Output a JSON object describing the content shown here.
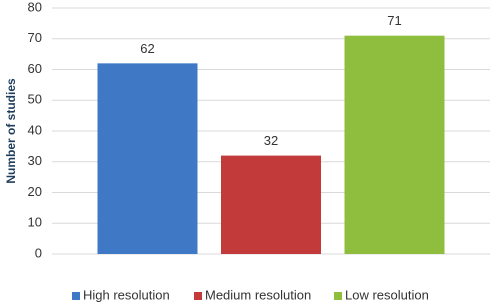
{
  "chart_data": {
    "type": "bar",
    "y_label": "Number of studies",
    "categories": [
      null
    ],
    "series": [
      {
        "name": "High resolution",
        "color": "#3f78c5",
        "values": [
          62
        ]
      },
      {
        "name": "Medium resolution",
        "color": "#c23a3a",
        "values": [
          32
        ]
      },
      {
        "name": "Low resolution",
        "color": "#8fbd3e",
        "values": [
          71
        ]
      }
    ],
    "ylim": [
      0,
      80
    ],
    "yticks": [
      0,
      10,
      20,
      30,
      40,
      50,
      60,
      70,
      80
    ],
    "grid": true,
    "legend": "bottom"
  }
}
